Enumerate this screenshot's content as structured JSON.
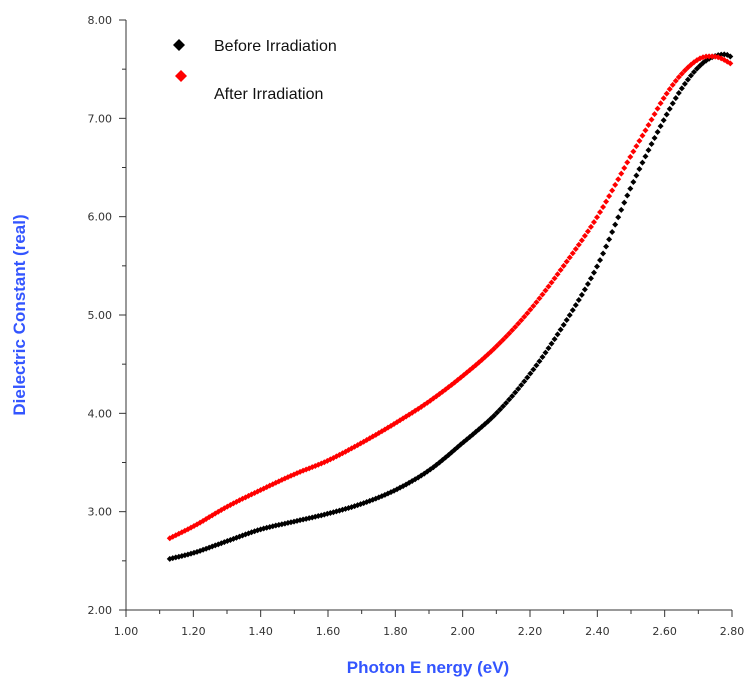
{
  "chart_data": {
    "type": "scatter",
    "title": "",
    "xlabel": "Photon E nergy (eV)",
    "ylabel": "Dielectric Constant (real)",
    "xlim": [
      1.0,
      2.8
    ],
    "ylim": [
      2.0,
      8.0
    ],
    "x_ticks": [
      "1.00",
      "1.20",
      "1.40",
      "1.60",
      "1.80",
      "2.00",
      "2.20",
      "2.40",
      "2.60",
      "2.80"
    ],
    "y_ticks": [
      "2.00",
      "3.00",
      "4.00",
      "5.00",
      "6.00",
      "7.00",
      "8.00"
    ],
    "grid": false,
    "legend_position": "top-left",
    "axis_title_color": "#3355ff",
    "series": [
      {
        "name": "Before Irradiation",
        "color": "#000000",
        "marker": "diamond",
        "x": [
          1.13,
          1.2,
          1.3,
          1.4,
          1.5,
          1.6,
          1.7,
          1.8,
          1.9,
          2.0,
          2.1,
          2.2,
          2.3,
          2.4,
          2.5,
          2.6,
          2.65,
          2.7,
          2.74,
          2.78,
          2.8
        ],
        "y": [
          2.52,
          2.58,
          2.7,
          2.82,
          2.9,
          2.98,
          3.08,
          3.22,
          3.42,
          3.7,
          4.0,
          4.4,
          4.9,
          5.5,
          6.3,
          7.0,
          7.3,
          7.52,
          7.62,
          7.65,
          7.62
        ]
      },
      {
        "name": "After Irradiation",
        "color": "#ff0000",
        "marker": "diamond",
        "x": [
          1.13,
          1.2,
          1.3,
          1.4,
          1.5,
          1.6,
          1.7,
          1.8,
          1.9,
          2.0,
          2.1,
          2.2,
          2.3,
          2.4,
          2.5,
          2.55,
          2.6,
          2.65,
          2.7,
          2.73,
          2.76,
          2.8
        ],
        "y": [
          2.73,
          2.85,
          3.05,
          3.22,
          3.38,
          3.52,
          3.7,
          3.9,
          4.12,
          4.38,
          4.68,
          5.05,
          5.5,
          6.0,
          6.62,
          6.92,
          7.22,
          7.45,
          7.6,
          7.63,
          7.62,
          7.55
        ]
      }
    ]
  }
}
